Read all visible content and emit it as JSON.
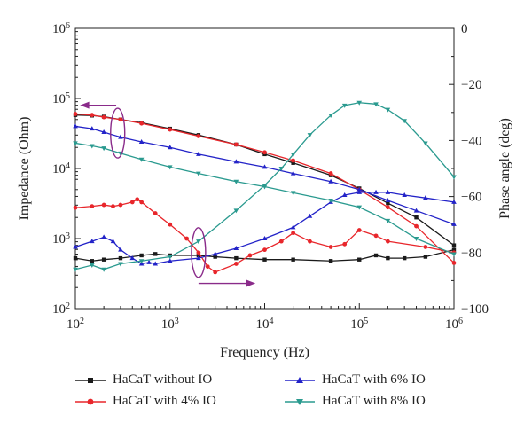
{
  "chart_data": {
    "type": "line",
    "xlabel": "Frequency (Hz)",
    "ylabel_left": "Impedance (Ohm)",
    "ylabel_right": "Phase angle (deg)",
    "x_scale": "log",
    "xlim": [
      100,
      1000000
    ],
    "ylim_left": [
      100,
      1000000
    ],
    "ylim_right": [
      -100,
      0
    ],
    "x_ticks": [
      {
        "base": "10",
        "exp": "2"
      },
      {
        "base": "10",
        "exp": "3"
      },
      {
        "base": "10",
        "exp": "4"
      },
      {
        "base": "10",
        "exp": "5"
      },
      {
        "base": "10",
        "exp": "6"
      }
    ],
    "y_left_ticks": [
      {
        "base": "10",
        "exp": "2"
      },
      {
        "base": "10",
        "exp": "3"
      },
      {
        "base": "10",
        "exp": "4"
      },
      {
        "base": "10",
        "exp": "5"
      },
      {
        "base": "10",
        "exp": "6"
      }
    ],
    "y_right_ticks": [
      "0",
      "−20",
      "−40",
      "−60",
      "−80",
      "−100"
    ],
    "grid": false,
    "legend_position": "bottom",
    "series": [
      {
        "name": "HaCaT without IO",
        "color": "#1a1a1a",
        "marker": "square",
        "impedance": {
          "x": [
            100,
            150,
            200,
            300,
            500,
            1000,
            2000,
            5000,
            10000,
            20000,
            50000,
            100000,
            200000,
            400000,
            1000000
          ],
          "y": [
            58000,
            57000,
            55000,
            50000,
            45000,
            37000,
            30000,
            22000,
            16000,
            12000,
            8000,
            5200,
            3200,
            2000,
            800
          ]
        },
        "phase": {
          "x": [
            100,
            150,
            200,
            300,
            500,
            700,
            1000,
            2000,
            3000,
            5000,
            10000,
            20000,
            50000,
            100000,
            150000,
            200000,
            300000,
            500000,
            1000000
          ],
          "y": [
            -82,
            -83,
            -82.5,
            -82,
            -81,
            -80.5,
            -81,
            -81,
            -81.5,
            -82,
            -82.5,
            -82.5,
            -83,
            -82.5,
            -81,
            -82,
            -82,
            -81.5,
            -79
          ]
        }
      },
      {
        "name": "HaCaT with 4% IO",
        "color": "#e8262b",
        "marker": "circle",
        "impedance": {
          "x": [
            100,
            150,
            200,
            300,
            500,
            1000,
            2000,
            5000,
            10000,
            20000,
            50000,
            100000,
            200000,
            400000,
            1000000
          ],
          "y": [
            60000,
            58000,
            54000,
            50000,
            44000,
            36000,
            29000,
            22000,
            17000,
            13000,
            8500,
            5000,
            2800,
            1500,
            450
          ]
        },
        "phase": {
          "x": [
            100,
            150,
            200,
            250,
            300,
            400,
            450,
            500,
            700,
            1000,
            1500,
            2000,
            2500,
            3000,
            5000,
            7000,
            10000,
            15000,
            20000,
            30000,
            50000,
            70000,
            100000,
            150000,
            200000,
            500000,
            1000000
          ],
          "y": [
            -64,
            -63.5,
            -63,
            -63.5,
            -63,
            -62,
            -61,
            -62,
            -66,
            -70,
            -75,
            -80,
            -85,
            -87,
            -84,
            -81,
            -79,
            -76,
            -73,
            -76,
            -78,
            -77,
            -72,
            -74,
            -76,
            -78,
            -80
          ]
        }
      },
      {
        "name": "HaCaT with 6% IO",
        "color": "#2323c8",
        "marker": "triangle",
        "impedance": {
          "x": [
            100,
            150,
            200,
            300,
            500,
            1000,
            2000,
            5000,
            10000,
            20000,
            50000,
            100000,
            200000,
            400000,
            1000000
          ],
          "y": [
            40000,
            37000,
            33000,
            28000,
            24000,
            20000,
            16000,
            12500,
            10500,
            8500,
            6500,
            5000,
            3500,
            2500,
            1600
          ]
        },
        "phase": {
          "x": [
            100,
            150,
            200,
            250,
            300,
            400,
            500,
            600,
            700,
            1000,
            2000,
            3000,
            5000,
            10000,
            20000,
            30000,
            50000,
            70000,
            100000,
            150000,
            200000,
            300000,
            500000,
            1000000
          ],
          "y": [
            -78,
            -76,
            -74.5,
            -76,
            -79,
            -82,
            -84,
            -83.5,
            -84,
            -83,
            -82,
            -80.5,
            -78.5,
            -75,
            -71,
            -67,
            -62,
            -59.5,
            -58.5,
            -58.5,
            -58.5,
            -59.5,
            -60.5,
            -62
          ]
        }
      },
      {
        "name": "HaCaT with 8% IO",
        "color": "#2a9a8f",
        "marker": "inverted-triangle",
        "impedance": {
          "x": [
            100,
            150,
            200,
            300,
            500,
            1000,
            2000,
            5000,
            10000,
            20000,
            50000,
            100000,
            200000,
            400000,
            1000000
          ],
          "y": [
            23000,
            21000,
            19500,
            16500,
            13500,
            10500,
            8500,
            6500,
            5500,
            4500,
            3500,
            2800,
            1800,
            1000,
            600
          ]
        },
        "phase": {
          "x": [
            100,
            150,
            200,
            300,
            500,
            1000,
            2000,
            5000,
            10000,
            15000,
            20000,
            30000,
            50000,
            70000,
            100000,
            150000,
            200000,
            300000,
            500000,
            1000000
          ],
          "y": [
            -86,
            -84.5,
            -86,
            -84,
            -83,
            -81.5,
            -76,
            -65,
            -56,
            -50,
            -45,
            -38,
            -31,
            -27.5,
            -26.5,
            -27,
            -29,
            -33,
            -41,
            -53
          ]
        }
      }
    ],
    "annotations": [
      {
        "type": "ellipse-arrow",
        "target_axis": "left",
        "color": "#8a2b8a"
      },
      {
        "type": "ellipse-arrow",
        "target_axis": "right",
        "color": "#8a2b8a"
      }
    ]
  }
}
